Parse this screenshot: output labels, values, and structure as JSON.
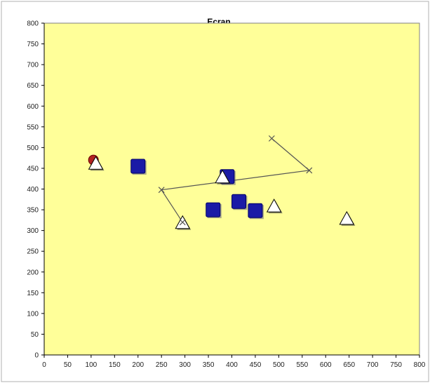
{
  "chart_data": {
    "type": "scatter",
    "title": "Ecran",
    "xlabel": "",
    "ylabel": "",
    "xlim": [
      0,
      800
    ],
    "ylim": [
      0,
      800
    ],
    "x_ticks": [
      0,
      50,
      100,
      150,
      200,
      250,
      300,
      350,
      400,
      450,
      500,
      550,
      600,
      650,
      700,
      750,
      800
    ],
    "y_ticks": [
      0,
      50,
      100,
      150,
      200,
      250,
      300,
      350,
      400,
      450,
      500,
      550,
      600,
      650,
      700,
      750,
      800
    ],
    "x_tick_labels": [
      "0",
      "50",
      "100",
      "150",
      "200",
      "250",
      "300",
      "350",
      "400",
      "450",
      "500",
      "550",
      "600",
      "650",
      "700",
      "750",
      "800"
    ],
    "y_tick_labels": [
      "0",
      "50",
      "100",
      "150",
      "200",
      "250",
      "300",
      "350",
      "400",
      "450",
      "500",
      "550",
      "600",
      "650",
      "700",
      "750",
      "800"
    ],
    "grid": false,
    "legend": "none",
    "colors": {
      "plot_background": "#ffff99",
      "square_fill": "#1a1aa6",
      "square_edge": "#000066",
      "triangle_fill": "#ffffff",
      "triangle_edge": "#000000",
      "circle_fill": "#b22222",
      "line": "#555555"
    },
    "series": [
      {
        "marker": "square",
        "points": [
          {
            "x": 200,
            "y": 455
          },
          {
            "x": 390,
            "y": 430
          },
          {
            "x": 360,
            "y": 350
          },
          {
            "x": 415,
            "y": 370
          },
          {
            "x": 450,
            "y": 348
          }
        ]
      },
      {
        "marker": "triangle",
        "points": [
          {
            "x": 110,
            "y": 463
          },
          {
            "x": 380,
            "y": 430
          },
          {
            "x": 295,
            "y": 320
          },
          {
            "x": 490,
            "y": 360
          },
          {
            "x": 645,
            "y": 330
          }
        ]
      },
      {
        "marker": "circle",
        "points": [
          {
            "x": 105,
            "y": 470
          }
        ]
      },
      {
        "marker": "x",
        "connected": true,
        "points": [
          {
            "x": 295,
            "y": 320
          },
          {
            "x": 250,
            "y": 398
          },
          {
            "x": 565,
            "y": 445
          },
          {
            "x": 485,
            "y": 522
          }
        ]
      }
    ]
  }
}
